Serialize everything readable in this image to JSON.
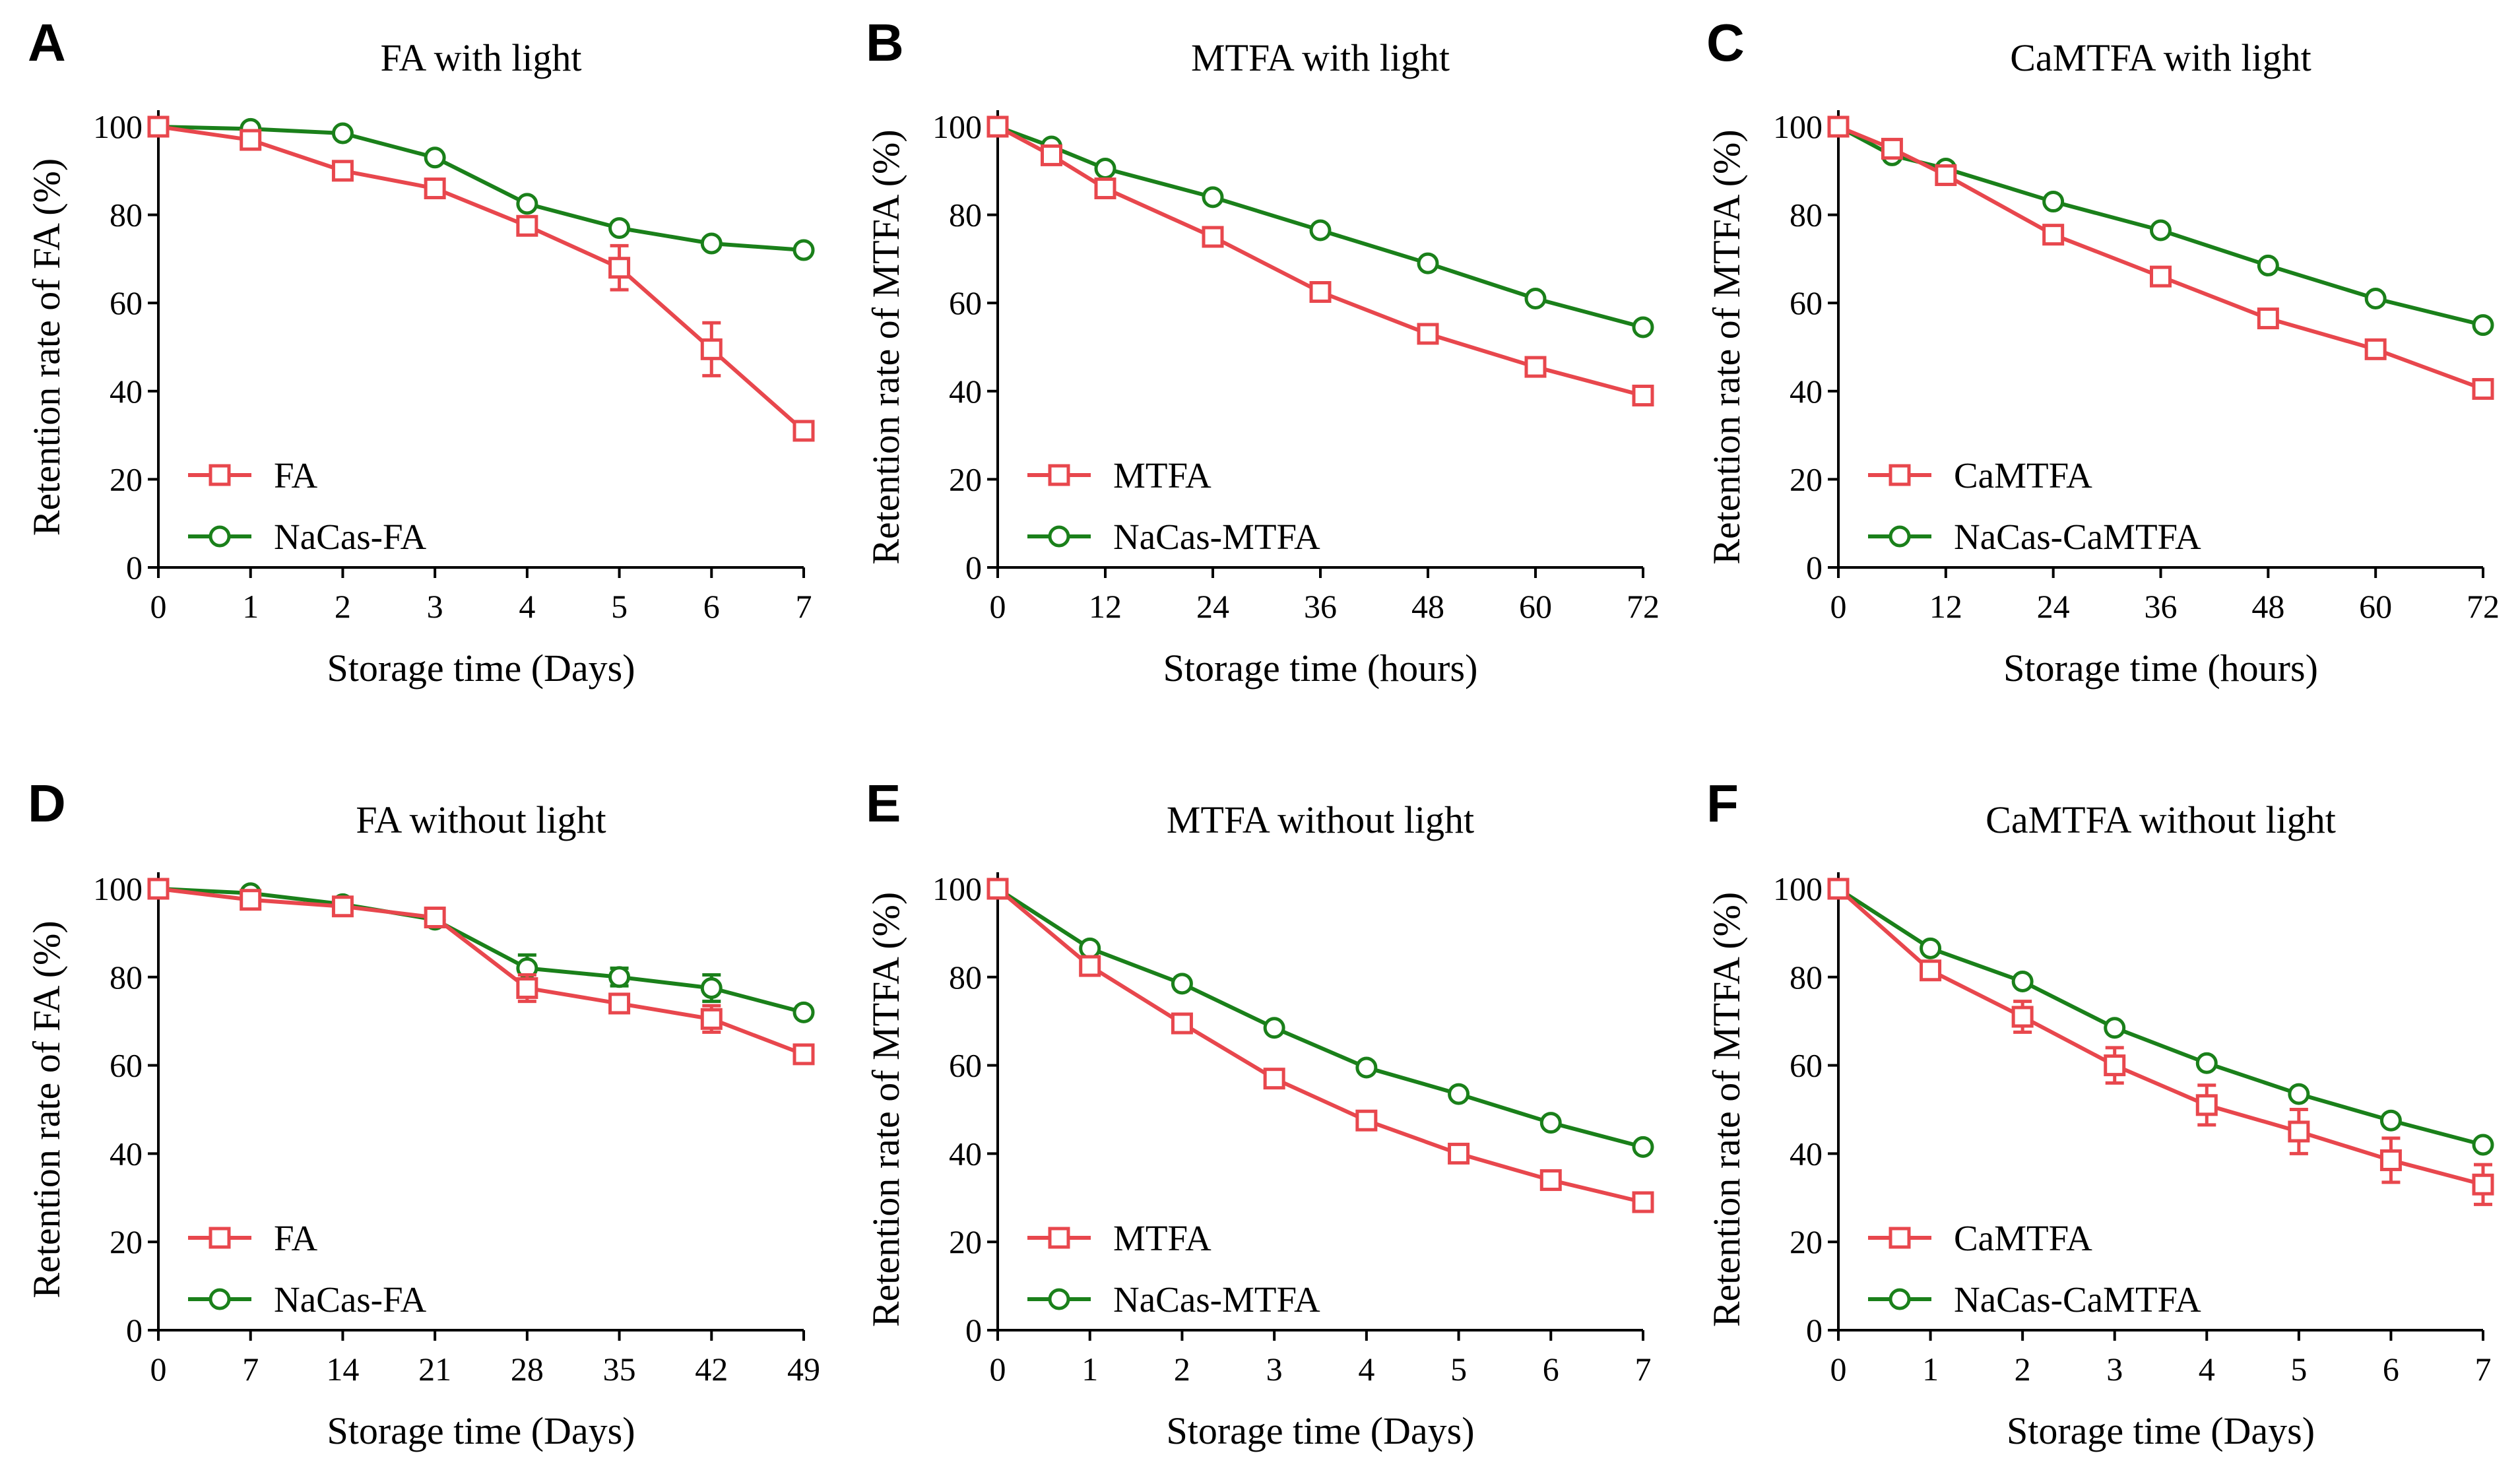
{
  "colors": {
    "red": "#e8474d",
    "green": "#1a801a",
    "axis": "#000000"
  },
  "chart_data": [
    {
      "letter": "A",
      "type": "line",
      "title": "FA with light",
      "xlabel": "Storage time (Days)",
      "ylabel": "Retention rate of FA (%)",
      "x": [
        0,
        1,
        2,
        3,
        4,
        5,
        6,
        7
      ],
      "xticks": [
        0,
        1,
        2,
        3,
        4,
        5,
        6,
        7
      ],
      "xticklabels": [
        "0",
        "1",
        "2",
        "3",
        "4",
        "5",
        "6",
        "7"
      ],
      "xlim": [
        0,
        7
      ],
      "ylim": [
        0,
        100
      ],
      "yticks": [
        0,
        20,
        40,
        60,
        80,
        100
      ],
      "yticklabels": [
        "0",
        "20",
        "40",
        "60",
        "80",
        "100"
      ],
      "series": [
        {
          "name": "FA",
          "marker": "square",
          "color": "red",
          "x": [
            0,
            1,
            2,
            3,
            4,
            5,
            6,
            7
          ],
          "values": [
            100,
            97,
            90,
            86,
            77.5,
            68,
            49.5,
            31
          ],
          "errors": [
            0,
            0,
            0,
            0,
            2,
            5,
            6,
            1
          ]
        },
        {
          "name": "NaCas-FA",
          "marker": "circle",
          "color": "green",
          "x": [
            0,
            1,
            2,
            3,
            4,
            5,
            6,
            7
          ],
          "values": [
            100,
            99.5,
            98.5,
            93,
            82.5,
            77,
            73.5,
            72
          ],
          "errors": [
            0,
            0,
            0,
            0,
            0,
            0,
            0,
            0
          ]
        }
      ]
    },
    {
      "letter": "B",
      "type": "line",
      "title": "MTFA with light",
      "xlabel": "Storage time (hours)",
      "ylabel": "Retention rate of MTFA (%)",
      "xticks": [
        0,
        12,
        24,
        36,
        48,
        60,
        72
      ],
      "xticklabels": [
        "0",
        "12",
        "24",
        "36",
        "48",
        "60",
        "72"
      ],
      "xlim": [
        0,
        72
      ],
      "ylim": [
        0,
        100
      ],
      "yticks": [
        0,
        20,
        40,
        60,
        80,
        100
      ],
      "yticklabels": [
        "0",
        "20",
        "40",
        "60",
        "80",
        "100"
      ],
      "series": [
        {
          "name": "MTFA",
          "marker": "square",
          "color": "red",
          "x": [
            0,
            6,
            12,
            24,
            36,
            48,
            60,
            72
          ],
          "values": [
            100,
            93.5,
            86,
            75,
            62.5,
            53,
            45.5,
            39
          ],
          "errors": [
            0,
            0,
            0,
            0,
            0,
            0,
            0,
            0
          ]
        },
        {
          "name": "NaCas-MTFA",
          "marker": "circle",
          "color": "green",
          "x": [
            0,
            6,
            12,
            24,
            36,
            48,
            60,
            72
          ],
          "values": [
            100,
            95.5,
            90.5,
            84,
            76.5,
            69,
            61,
            54.5
          ],
          "errors": [
            0,
            0,
            0,
            0,
            0,
            0,
            0,
            0
          ]
        }
      ]
    },
    {
      "letter": "C",
      "type": "line",
      "title": "CaMTFA with light",
      "xlabel": "Storage time (hours)",
      "ylabel": "Retention rate of MTFA (%)",
      "xticks": [
        0,
        12,
        24,
        36,
        48,
        60,
        72
      ],
      "xticklabels": [
        "0",
        "12",
        "24",
        "36",
        "48",
        "60",
        "72"
      ],
      "xlim": [
        0,
        72
      ],
      "ylim": [
        0,
        100
      ],
      "yticks": [
        0,
        20,
        40,
        60,
        80,
        100
      ],
      "yticklabels": [
        "0",
        "20",
        "40",
        "60",
        "80",
        "100"
      ],
      "series": [
        {
          "name": "CaMTFA",
          "marker": "square",
          "color": "red",
          "x": [
            0,
            6,
            12,
            24,
            36,
            48,
            60,
            72
          ],
          "values": [
            100,
            95,
            89,
            75.5,
            66,
            56.5,
            49.5,
            40.5
          ],
          "errors": [
            0,
            0,
            0,
            0,
            0,
            0,
            0,
            0
          ]
        },
        {
          "name": "NaCas-CaMTFA",
          "marker": "circle",
          "color": "green",
          "x": [
            0,
            6,
            12,
            24,
            36,
            48,
            60,
            72
          ],
          "values": [
            100,
            93.5,
            90.5,
            83,
            76.5,
            68.5,
            61,
            55
          ],
          "errors": [
            0,
            0,
            0,
            0,
            0,
            0,
            0,
            0
          ]
        }
      ]
    },
    {
      "letter": "D",
      "type": "line",
      "title": "FA without light",
      "xlabel": "Storage time (Days)",
      "ylabel": "Retention rate of FA (%)",
      "xticks": [
        0,
        7,
        14,
        21,
        28,
        35,
        42,
        49
      ],
      "xticklabels": [
        "0",
        "7",
        "14",
        "21",
        "28",
        "35",
        "42",
        "49"
      ],
      "xlim": [
        0,
        49
      ],
      "ylim": [
        0,
        100
      ],
      "yticks": [
        0,
        20,
        40,
        60,
        80,
        100
      ],
      "yticklabels": [
        "0",
        "20",
        "40",
        "60",
        "80",
        "100"
      ],
      "series": [
        {
          "name": "FA",
          "marker": "square",
          "color": "red",
          "x": [
            0,
            7,
            14,
            21,
            28,
            35,
            42,
            49
          ],
          "values": [
            100,
            97.5,
            96,
            93.5,
            77.5,
            74,
            70.5,
            62.5
          ],
          "errors": [
            0,
            0,
            0,
            0,
            3,
            0,
            3,
            0
          ]
        },
        {
          "name": "NaCas-FA",
          "marker": "circle",
          "color": "green",
          "x": [
            0,
            7,
            14,
            21,
            28,
            35,
            42,
            49
          ],
          "values": [
            100,
            99,
            96.5,
            93,
            82,
            80,
            77.5,
            72
          ],
          "errors": [
            0,
            0,
            0,
            0,
            3,
            2,
            3,
            0
          ]
        }
      ]
    },
    {
      "letter": "E",
      "type": "line",
      "title": "MTFA without light",
      "xlabel": "Storage time (Days)",
      "ylabel": "Retention rate of MTFA (%)",
      "xticks": [
        0,
        1,
        2,
        3,
        4,
        5,
        6,
        7
      ],
      "xticklabels": [
        "0",
        "1",
        "2",
        "3",
        "4",
        "5",
        "6",
        "7"
      ],
      "xlim": [
        0,
        7
      ],
      "ylim": [
        0,
        100
      ],
      "yticks": [
        0,
        20,
        40,
        60,
        80,
        100
      ],
      "yticklabels": [
        "0",
        "20",
        "40",
        "60",
        "80",
        "100"
      ],
      "series": [
        {
          "name": "MTFA",
          "marker": "square",
          "color": "red",
          "x": [
            0,
            1,
            2,
            3,
            4,
            5,
            6,
            7
          ],
          "values": [
            100,
            82.5,
            69.5,
            57,
            47.5,
            40,
            34,
            29
          ],
          "errors": [
            0,
            0,
            0,
            0,
            0,
            0,
            0,
            0
          ]
        },
        {
          "name": "NaCas-MTFA",
          "marker": "circle",
          "color": "green",
          "x": [
            0,
            1,
            2,
            3,
            4,
            5,
            6,
            7
          ],
          "values": [
            100,
            86.5,
            78.5,
            68.5,
            59.5,
            53.5,
            47,
            41.5
          ],
          "errors": [
            0,
            0,
            0,
            0,
            0,
            0,
            0,
            0
          ]
        }
      ]
    },
    {
      "letter": "F",
      "type": "line",
      "title": "CaMTFA without light",
      "xlabel": "Storage time (Days)",
      "ylabel": "Retention rate of MTFA (%)",
      "xticks": [
        0,
        1,
        2,
        3,
        4,
        5,
        6,
        7
      ],
      "xticklabels": [
        "0",
        "1",
        "2",
        "3",
        "4",
        "5",
        "6",
        "7"
      ],
      "xlim": [
        0,
        7
      ],
      "ylim": [
        0,
        100
      ],
      "yticks": [
        0,
        20,
        40,
        60,
        80,
        100
      ],
      "yticklabels": [
        "0",
        "20",
        "40",
        "60",
        "80",
        "100"
      ],
      "series": [
        {
          "name": "CaMTFA",
          "marker": "square",
          "color": "red",
          "x": [
            0,
            1,
            2,
            3,
            4,
            5,
            6,
            7
          ],
          "values": [
            100,
            81.5,
            71,
            60,
            51,
            45,
            38.5,
            33
          ],
          "errors": [
            0,
            2,
            3.5,
            4,
            4.5,
            5,
            5,
            4.5
          ]
        },
        {
          "name": "NaCas-CaMTFA",
          "marker": "circle",
          "color": "green",
          "x": [
            0,
            1,
            2,
            3,
            4,
            5,
            6,
            7
          ],
          "values": [
            100,
            86.5,
            79,
            68.5,
            60.5,
            53.5,
            47.5,
            42
          ],
          "errors": [
            0,
            0,
            0,
            0,
            0,
            0,
            0,
            0
          ]
        }
      ]
    }
  ]
}
